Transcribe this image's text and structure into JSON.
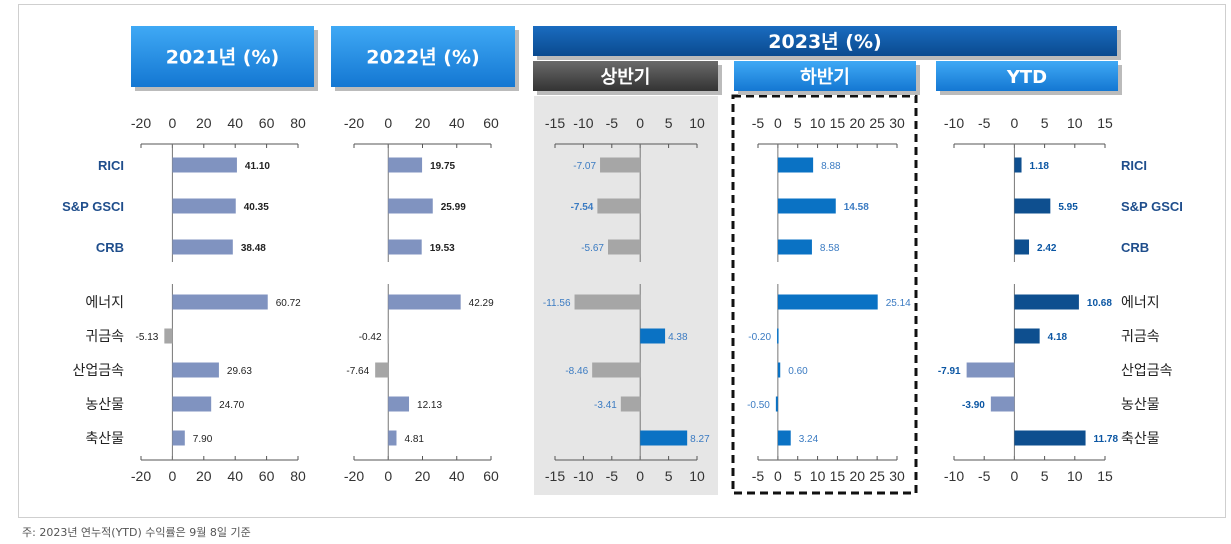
{
  "footnote": "주: 2023년 연누적(YTD) 수익률은 9월 8일 기준",
  "headers": {
    "y2021": "2021년 (%)",
    "y2022": "2022년 (%)",
    "y2023": "2023년 (%)",
    "h1": "상반기",
    "h2": "하반기",
    "ytd": "YTD"
  },
  "categories": [
    "RICI",
    "S&P GSCI",
    "CRB",
    "에너지",
    "귀금속",
    "산업금속",
    "농산물",
    "축산물"
  ],
  "colors": {
    "grey_bar": "#a6a6a6",
    "slate_bar": "#8093c0",
    "blue_bar": "#0a72c4",
    "navy_bar": "#0e4f8f",
    "header_blue": "#1d8fe6",
    "header_navy": "#0b56a3",
    "header_dark": "#444444",
    "panel_grey": "#e6e6e6",
    "blue_text": "#3b7bc2"
  },
  "chart_data": [
    {
      "type": "bar",
      "title": "2021년 (%)",
      "categories": [
        "RICI",
        "S&P GSCI",
        "CRB",
        "에너지",
        "귀금속",
        "산업금속",
        "농산물",
        "축산물"
      ],
      "values": [
        41.1,
        40.35,
        38.48,
        60.72,
        -5.13,
        29.63,
        24.7,
        7.9
      ],
      "value_labels": [
        "41.10",
        "40.35",
        "38.48",
        "60.72",
        "-5.13",
        "29.63",
        "24.70",
        "7.90"
      ],
      "xlim": [
        -20,
        80
      ],
      "ticks": [
        "-20",
        "0",
        "20",
        "40",
        "60",
        "80"
      ],
      "orientation": "horizontal"
    },
    {
      "type": "bar",
      "title": "2022년 (%)",
      "categories": [
        "RICI",
        "S&P GSCI",
        "CRB",
        "에너지",
        "귀금속",
        "산업금속",
        "농산물",
        "축산물"
      ],
      "values": [
        19.75,
        25.99,
        19.53,
        42.29,
        -0.42,
        -7.64,
        12.13,
        4.81
      ],
      "value_labels": [
        "19.75",
        "25.99",
        "19.53",
        "42.29",
        "-0.42",
        "-7.64",
        "12.13",
        "4.81"
      ],
      "xlim": [
        -20,
        60
      ],
      "ticks": [
        "-20",
        "0",
        "20",
        "40",
        "60"
      ],
      "orientation": "horizontal"
    },
    {
      "type": "bar",
      "title": "상반기",
      "categories": [
        "RICI",
        "S&P GSCI",
        "CRB",
        "에너지",
        "귀금속",
        "산업금속",
        "농산물",
        "축산물"
      ],
      "values": [
        -7.07,
        -7.54,
        -5.67,
        -11.56,
        4.38,
        -8.46,
        -3.41,
        8.27
      ],
      "value_labels": [
        "-7.07",
        "-7.54",
        "-5.67",
        "-11.56",
        "4.38",
        "-8.46",
        "-3.41",
        "8.27"
      ],
      "xlim": [
        -15,
        10
      ],
      "ticks": [
        "-15",
        "-10",
        "-5",
        "0",
        "5",
        "10"
      ],
      "orientation": "horizontal"
    },
    {
      "type": "bar",
      "title": "하반기",
      "categories": [
        "RICI",
        "S&P GSCI",
        "CRB",
        "에너지",
        "귀금속",
        "산업금속",
        "농산물",
        "축산물"
      ],
      "values": [
        8.88,
        14.58,
        8.58,
        25.14,
        -0.2,
        0.6,
        -0.5,
        3.24
      ],
      "value_labels": [
        "8.88",
        "14.58",
        "8.58",
        "25.14",
        "-0.20",
        "0.60",
        "-0.50",
        "3.24"
      ],
      "xlim": [
        -5,
        30
      ],
      "ticks": [
        "-5",
        "0",
        "5",
        "10",
        "15",
        "20",
        "25",
        "30"
      ],
      "orientation": "horizontal"
    },
    {
      "type": "bar",
      "title": "YTD",
      "categories": [
        "RICI",
        "S&P GSCI",
        "CRB",
        "에너지",
        "귀금속",
        "산업금속",
        "농산물",
        "축산물"
      ],
      "values": [
        1.18,
        5.95,
        2.42,
        10.68,
        4.18,
        -7.91,
        -3.9,
        11.78
      ],
      "value_labels": [
        "1.18",
        "5.95",
        "2.42",
        "10.68",
        "4.18",
        "-7.91",
        "-3.90",
        "11.78"
      ],
      "xlim": [
        -10,
        15
      ],
      "ticks": [
        "-10",
        "-5",
        "0",
        "5",
        "10",
        "15"
      ],
      "orientation": "horizontal"
    }
  ]
}
